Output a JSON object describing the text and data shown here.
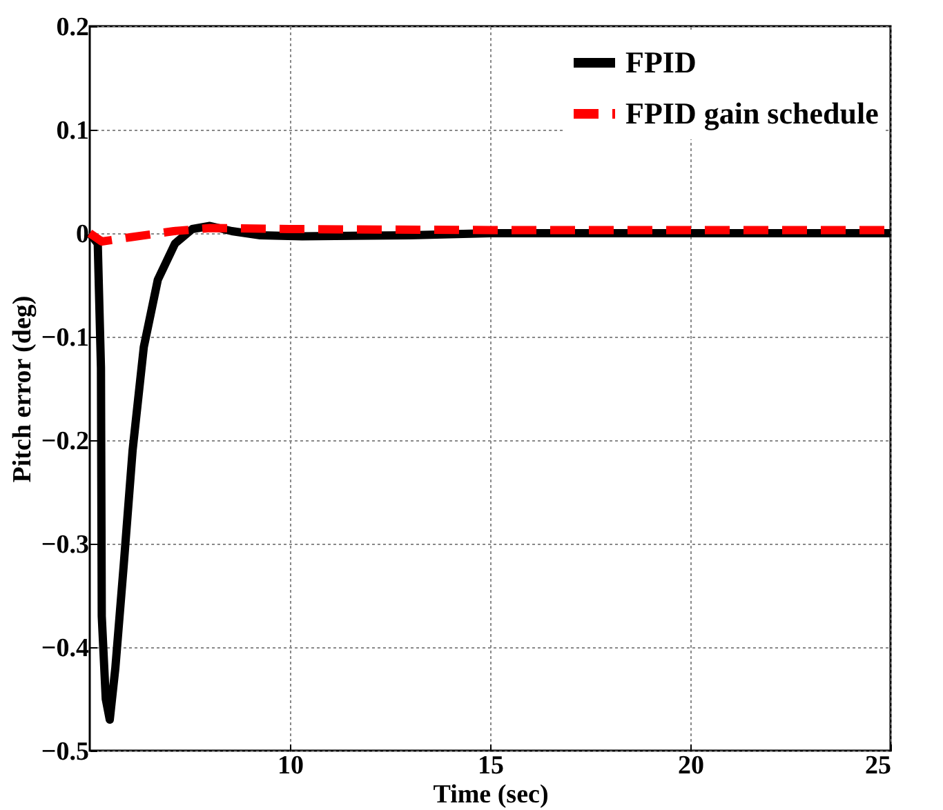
{
  "chart_data": {
    "type": "line",
    "xlabel": "Time (sec)",
    "ylabel": "Pitch error (deg)",
    "xlim": [
      5,
      25
    ],
    "xticks": [
      10,
      15,
      20,
      25
    ],
    "ylim": [
      -0.5,
      0.2
    ],
    "yticks": [
      -0.5,
      -0.4,
      -0.3,
      -0.2,
      -0.1,
      0,
      0.1,
      0.2
    ],
    "grid": true,
    "legend": "top right",
    "series": [
      {
        "name": "FPID",
        "color": "#000000",
        "line_style": "solid",
        "x": [
          5.0,
          5.2,
          5.28,
          5.3,
          5.4,
          5.5,
          5.64,
          5.85,
          6.07,
          6.35,
          6.7,
          7.13,
          7.56,
          8.0,
          8.55,
          9.26,
          10.3,
          13,
          15,
          25
        ],
        "values": [
          0,
          -0.01,
          -0.13,
          -0.37,
          -0.45,
          -0.47,
          -0.42,
          -0.32,
          -0.21,
          -0.11,
          -0.045,
          -0.01,
          0.004,
          0.007,
          0.002,
          -0.002,
          -0.003,
          -0.002,
          0,
          0
        ]
      },
      {
        "name": "FPID gain schedule",
        "color": "#ff0000",
        "line_style": "dashed",
        "x": [
          5.0,
          5.3,
          6.0,
          7.1,
          8.0,
          10,
          15,
          25
        ],
        "values": [
          0,
          -0.008,
          -0.004,
          0.002,
          0.005,
          0.004,
          0.003,
          0.003
        ]
      }
    ]
  }
}
